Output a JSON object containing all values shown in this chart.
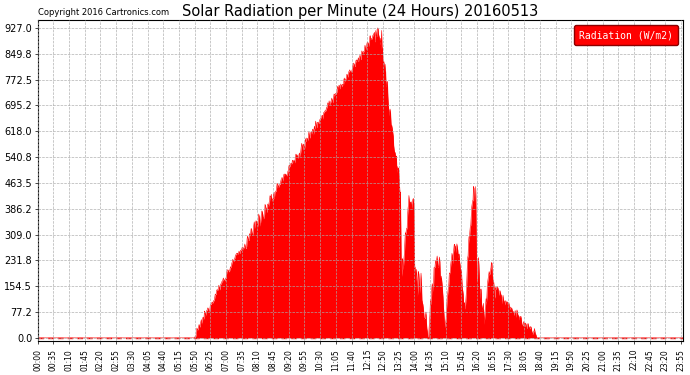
{
  "title": "Solar Radiation per Minute (24 Hours) 20160513",
  "copyright_text": "Copyright 2016 Cartronics.com",
  "legend_label": "Radiation (W/m2)",
  "bg_color": "#ffffff",
  "plot_bg_color": "#ffffff",
  "fill_color": "#ff0000",
  "line_color": "#ff0000",
  "grid_color": "#cccccc",
  "dashed_line_color": "#ff0000",
  "ytick_labels": [
    "0.0",
    "77.2",
    "154.5",
    "231.8",
    "309.0",
    "386.2",
    "463.5",
    "540.8",
    "618.0",
    "695.2",
    "772.5",
    "849.8",
    "927.0"
  ],
  "ytick_values": [
    0.0,
    77.2,
    154.5,
    231.8,
    309.0,
    386.2,
    463.5,
    540.8,
    618.0,
    695.2,
    772.5,
    849.8,
    927.0
  ],
  "ymax": 950,
  "ymin": -10,
  "sunrise_min": 350,
  "sunset_min": 1120,
  "peak_min": 760,
  "peak_value": 927.0
}
